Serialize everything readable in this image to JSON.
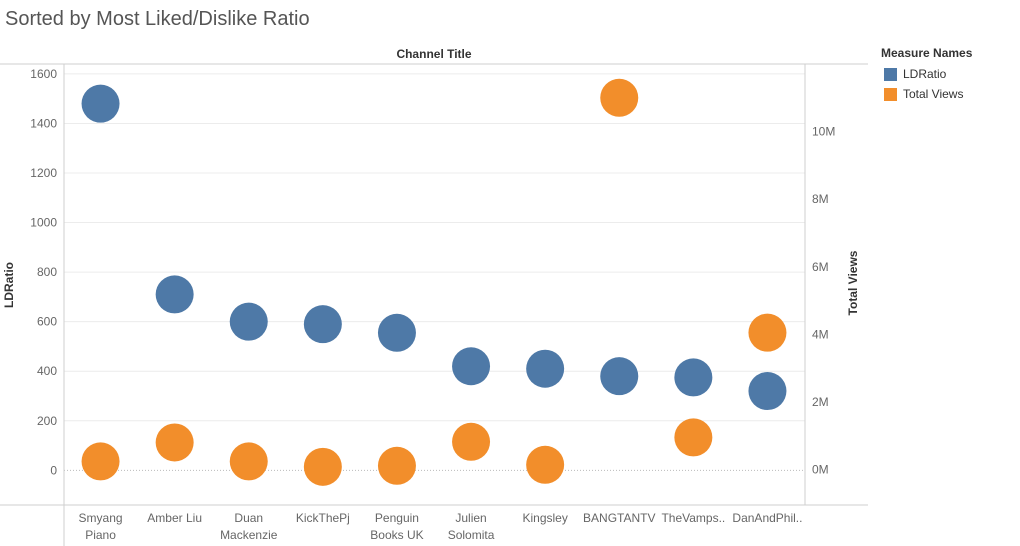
{
  "title": "Sorted by Most Liked/Dislike Ratio",
  "chart_data": {
    "type": "scatter",
    "top_label": "Channel Title",
    "categories": [
      "Smyang Piano",
      "Amber Liu",
      "Duan Mackenzie",
      "KickThePj",
      "Penguin Books UK",
      "Julien Solomita",
      "Kingsley",
      "BANGTANTV",
      "TheVamps..",
      "DanAndPhil.."
    ],
    "category_labels": [
      [
        "Smyang",
        "Piano"
      ],
      [
        "Amber Liu"
      ],
      [
        "Duan",
        "Mackenzie"
      ],
      [
        "KickThePj"
      ],
      [
        "Penguin",
        "Books UK"
      ],
      [
        "Julien",
        "Solomita"
      ],
      [
        "Kingsley"
      ],
      [
        "BANGTANTV"
      ],
      [
        "TheVamps.."
      ],
      [
        "DanAndPhil.."
      ]
    ],
    "series": [
      {
        "name": "LDRatio",
        "axis": "left",
        "color": "#4e79a7",
        "values": [
          1480,
          710,
          600,
          590,
          555,
          420,
          410,
          380,
          375,
          320
        ]
      },
      {
        "name": "Total Views",
        "axis": "right",
        "color": "#f28e2b",
        "values": [
          240000,
          800000,
          240000,
          80000,
          110000,
          820000,
          140000,
          11000000,
          950000,
          4050000
        ]
      }
    ],
    "left_axis": {
      "label": "LDRatio",
      "ylim": [
        -140,
        1640
      ],
      "ticks": [
        0,
        200,
        400,
        600,
        800,
        1000,
        1200,
        1400,
        1600
      ],
      "tick_labels": [
        "0",
        "200",
        "400",
        "600",
        "800",
        "1000",
        "1200",
        "1400",
        "1600"
      ]
    },
    "right_axis": {
      "label": "Total Views",
      "ylim": [
        -1050000,
        12000000
      ],
      "ticks": [
        0,
        2000000,
        4000000,
        6000000,
        8000000,
        10000000
      ],
      "tick_labels": [
        "0M",
        "2M",
        "4M",
        "6M",
        "8M",
        "10M"
      ]
    },
    "grid": true,
    "legend": {
      "title": "Measure Names",
      "position": "right"
    }
  }
}
